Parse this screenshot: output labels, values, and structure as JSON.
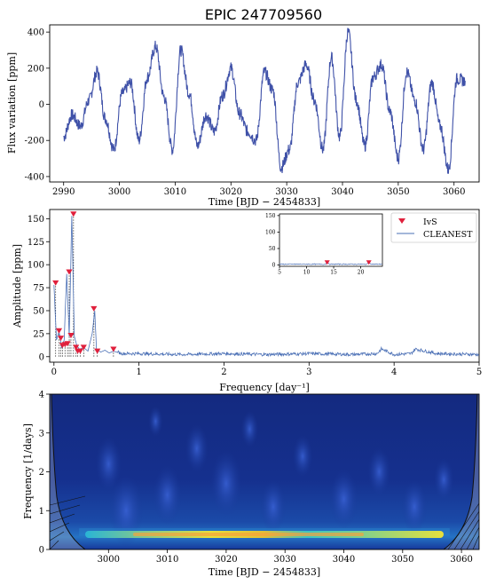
{
  "title": "EPIC 247709560",
  "chart_data": [
    {
      "type": "line",
      "xlabel": "Time [BJD − 2454833]",
      "ylabel": "Flux variation [ppm]",
      "xlim": [
        2987.5,
        3064.5
      ],
      "ylim": [
        -430,
        440
      ],
      "xticks": [
        2990,
        3000,
        3010,
        3020,
        3030,
        3040,
        3050,
        3060
      ],
      "yticks": [
        -400,
        -200,
        0,
        200,
        400
      ],
      "color": "#3f51a8",
      "series": [
        {
          "x": [
            2990,
            2991.5,
            2993,
            2994.5,
            2996,
            2997.5,
            2999,
            3000.5,
            3002,
            3003.5,
            3005,
            3006.5,
            3008,
            3009.5,
            3011,
            3012.5,
            3014,
            3015.5,
            3017,
            3018.5,
            3020,
            3021.5,
            3023,
            3024.5,
            3026,
            3027.5,
            3029,
            3030.5,
            3032,
            3033.5,
            3035,
            3036.5,
            3038,
            3039.5,
            3041,
            3042.5,
            3044,
            3045.5,
            3047,
            3048.5,
            3050,
            3051.5,
            3053,
            3054.5,
            3056,
            3057.5,
            3059,
            3060.5,
            3062
          ],
          "y": [
            -180,
            -60,
            -120,
            20,
            180,
            -80,
            -250,
            60,
            120,
            -200,
            150,
            320,
            40,
            -250,
            300,
            60,
            -230,
            -60,
            -150,
            50,
            200,
            -50,
            -150,
            -200,
            180,
            80,
            -350,
            -250,
            120,
            220,
            20,
            -250,
            260,
            -180,
            400,
            20,
            -230,
            150,
            220,
            -40,
            -300,
            180,
            20,
            -250,
            120,
            -120,
            -360,
            140,
            130
          ]
        }
      ]
    },
    {
      "type": "line",
      "xlabel": "Frequency [day⁻¹]",
      "ylabel": "Amplitude [ppm]",
      "xlim": [
        -0.05,
        5.0
      ],
      "ylim": [
        -6,
        160
      ],
      "xticks": [
        0,
        1,
        2,
        3,
        4,
        5
      ],
      "yticks": [
        0,
        25,
        50,
        75,
        100,
        125,
        150
      ],
      "legend": [
        "IvS",
        "CLEANEST"
      ],
      "legend_position": "top-right",
      "series": [
        {
          "name": "CLEANEST",
          "color": "#4a6fb5",
          "x": [
            0.0,
            0.03,
            0.06,
            0.09,
            0.12,
            0.15,
            0.18,
            0.21,
            0.24,
            0.27,
            0.3,
            0.35,
            0.4,
            0.45,
            0.48,
            0.5,
            0.55,
            0.6,
            0.65,
            0.7,
            0.8,
            1.0,
            1.5,
            2.0,
            2.5,
            3.0,
            3.5,
            3.8,
            3.85,
            4.0,
            4.2,
            4.25,
            4.5,
            5.0
          ],
          "y": [
            78,
            18,
            28,
            10,
            18,
            90,
            22,
            153,
            22,
            12,
            8,
            10,
            6,
            25,
            50,
            8,
            5,
            7,
            4,
            6,
            3,
            3,
            2,
            3,
            2,
            3,
            2,
            3,
            8,
            2,
            3,
            8,
            3,
            2
          ]
        },
        {
          "name": "IvS",
          "color": "#e0203c",
          "marker": "triangle-down",
          "x": [
            0.02,
            0.06,
            0.08,
            0.1,
            0.13,
            0.16,
            0.18,
            0.2,
            0.23,
            0.26,
            0.28,
            0.31,
            0.35,
            0.47,
            0.51,
            0.7
          ],
          "y": [
            80,
            28,
            20,
            12,
            13,
            14,
            92,
            23,
            155,
            10,
            6,
            6,
            10,
            52,
            6,
            8
          ]
        }
      ],
      "inset": {
        "xlim": [
          5,
          24
        ],
        "ylim": [
          -4,
          155
        ],
        "xticks": [
          5,
          10,
          15,
          20
        ],
        "yticks": [
          0,
          50,
          100,
          150
        ],
        "ivs_points": [
          {
            "x": 13.8,
            "y": 6
          },
          {
            "x": 21.5,
            "y": 6
          }
        ]
      }
    },
    {
      "type": "heatmap",
      "xlabel": "Time [BJD − 2454833]",
      "ylabel": "Frequency [1/days]",
      "xlim": [
        2990,
        3063
      ],
      "ylim": [
        0,
        4
      ],
      "xticks": [
        3000,
        3010,
        3020,
        3030,
        3040,
        3050,
        3060
      ],
      "yticks": [
        0,
        1,
        2,
        3,
        4
      ],
      "ridge_frequency": 0.3,
      "colormap": "jet"
    }
  ]
}
